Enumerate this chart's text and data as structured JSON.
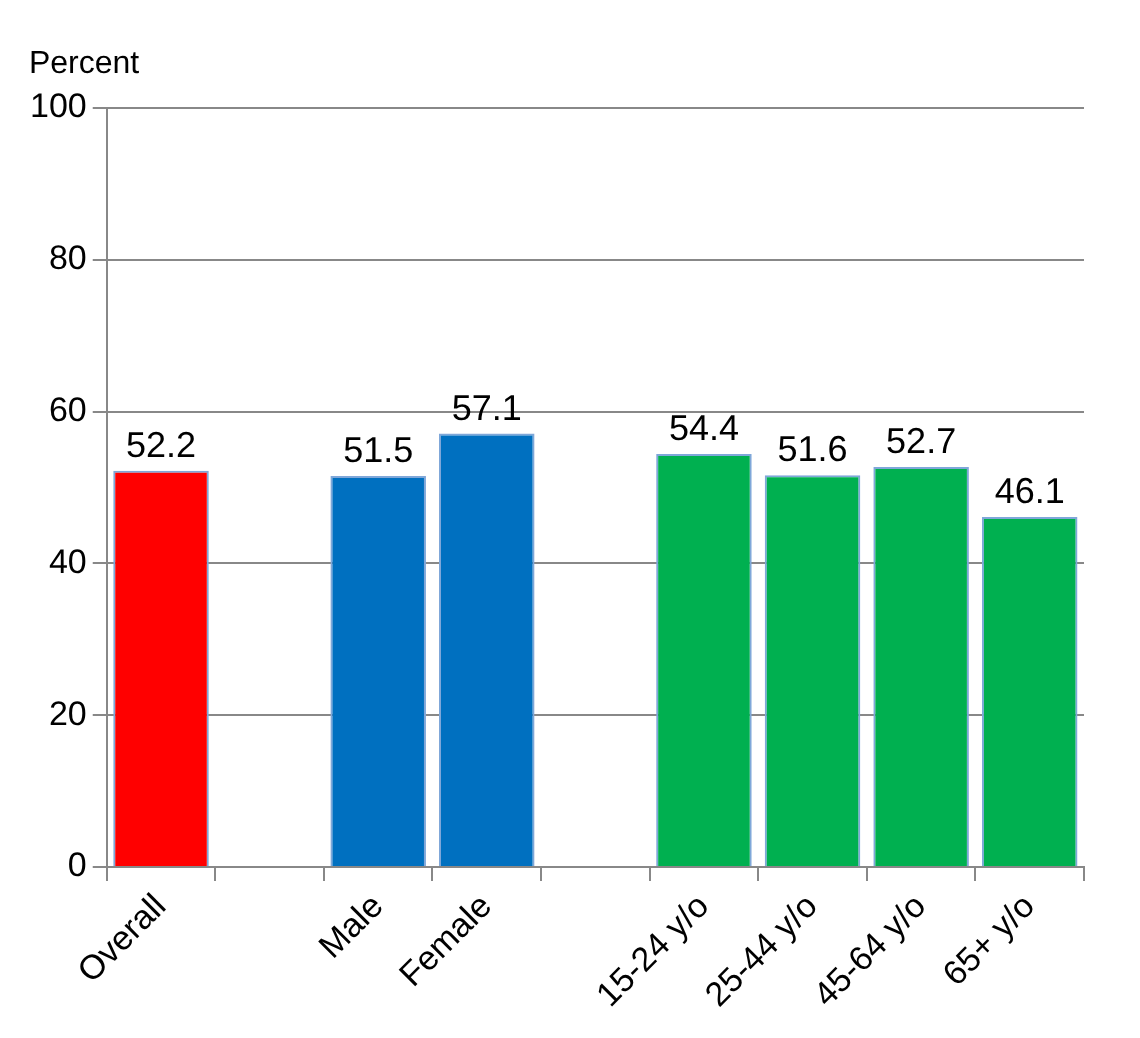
{
  "chart_data": {
    "type": "bar",
    "ylabel": "Percent",
    "categories": [
      "Overall",
      null,
      "Male",
      "Female",
      null,
      "15-24 y/o",
      "25-44 y/o",
      "45-64 y/o",
      "65+ y/o"
    ],
    "values": [
      52.2,
      null,
      51.5,
      57.1,
      null,
      54.4,
      51.6,
      52.7,
      46.1
    ],
    "colors": [
      "#ff0000",
      null,
      "#0070c0",
      "#0070c0",
      null,
      "#00b050",
      "#00b050",
      "#00b050",
      "#00b050"
    ],
    "ylim": [
      0,
      100
    ],
    "yticks": [
      0,
      20,
      40,
      60,
      80,
      100
    ],
    "grid": "y",
    "legend": false,
    "data_labels": true
  }
}
